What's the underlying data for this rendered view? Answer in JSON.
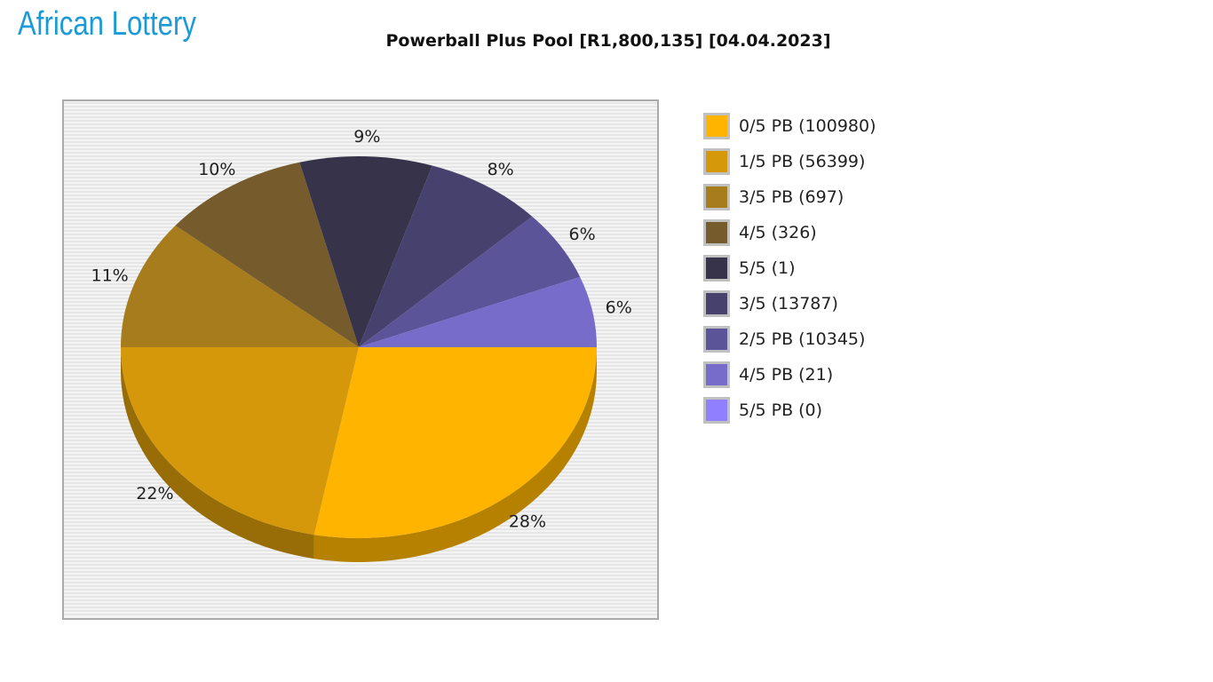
{
  "logo": {
    "text": "African Lottery"
  },
  "chart_data": {
    "type": "pie",
    "title": "Powerball Plus Pool [R1,800,135] [04.04.2023]",
    "legend_position": "right",
    "slices": [
      {
        "label": "0/5 PB (100980)",
        "percent": 28,
        "color": "#FFB400"
      },
      {
        "label": "1/5 PB (56399)",
        "percent": 22,
        "color": "#D4980A"
      },
      {
        "label": "3/5 PB (697)",
        "percent": 11,
        "color": "#A67C1C"
      },
      {
        "label": "4/5 (326)",
        "percent": 10,
        "color": "#765C2C"
      },
      {
        "label": "5/5 (1)",
        "percent": 9,
        "color": "#36334A"
      },
      {
        "label": "3/5 (13787)",
        "percent": 8,
        "color": "#47416E"
      },
      {
        "label": "2/5 PB (10345)",
        "percent": 6,
        "color": "#5C5499"
      },
      {
        "label": "4/5 PB (21)",
        "percent": 6,
        "color": "#776CC9"
      },
      {
        "label": "5/5 PB (0)",
        "percent": 0,
        "color": "#9080FF"
      }
    ]
  }
}
